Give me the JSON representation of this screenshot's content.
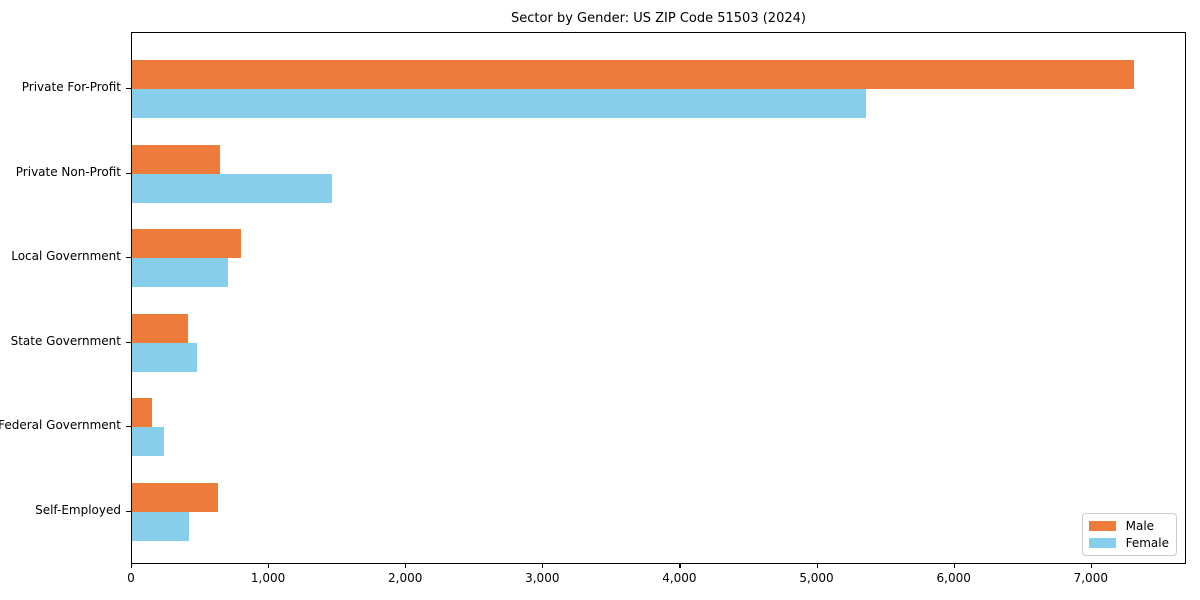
{
  "chart_data": {
    "type": "bar",
    "orientation": "horizontal",
    "title": "Sector by Gender: US ZIP Code 51503 (2024)",
    "categories": [
      "Private For-Profit",
      "Private Non-Profit",
      "Local Government",
      "State Government",
      "Federal Government",
      "Self-Employed"
    ],
    "series": [
      {
        "name": "Male",
        "color": "#ED7C3B",
        "values": [
          7310,
          640,
          795,
          410,
          145,
          625
        ]
      },
      {
        "name": "Female",
        "color": "#87CEEB",
        "values": [
          5350,
          1455,
          700,
          475,
          235,
          415
        ]
      }
    ],
    "xlim": [
      0,
      7680
    ],
    "x_ticks": [
      0,
      1000,
      2000,
      3000,
      4000,
      5000,
      6000,
      7000
    ],
    "x_tick_labels": [
      "0",
      "1,000",
      "2,000",
      "3,000",
      "4,000",
      "5,000",
      "6,000",
      "7,000"
    ],
    "xlabel": "",
    "ylabel": "",
    "grid": false,
    "legend_position": "lower right",
    "plot_background": "#ffffff",
    "frame_color": "#000000"
  }
}
